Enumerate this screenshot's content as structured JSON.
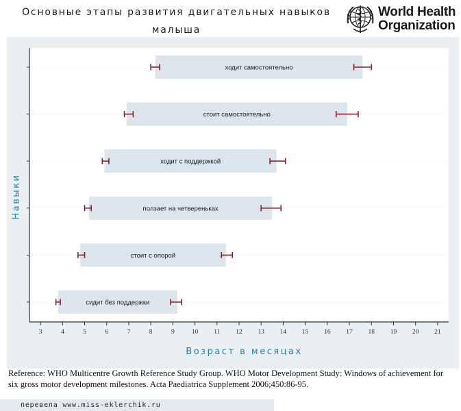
{
  "header": {
    "title_line1": "Основные этапы развития двигательных навыков",
    "title_line2": "малыша"
  },
  "logo": {
    "line1": "World Health",
    "line2": "Organization",
    "icon": "who-emblem-icon"
  },
  "chart_data": {
    "type": "range-bar",
    "ylabel": "Навыки",
    "xlabel": "Возраст в месяцах",
    "xlim": [
      2.5,
      21.5
    ],
    "xticks": [
      3,
      4,
      5,
      6,
      7,
      8,
      9,
      10,
      11,
      12,
      13,
      14,
      15,
      16,
      17,
      18,
      19,
      20,
      21
    ],
    "grid": false,
    "milestones": [
      {
        "label": "ходит самостоятельно",
        "start": 8.2,
        "end": 17.6,
        "ci_start": [
          8.0,
          8.4
        ],
        "ci_end": [
          17.2,
          18.0
        ]
      },
      {
        "label": "стоит самостоятельно",
        "start": 6.9,
        "end": 16.9,
        "ci_start": [
          6.8,
          7.2
        ],
        "ci_end": [
          16.4,
          17.4
        ]
      },
      {
        "label": "ходит с поддержкой",
        "start": 5.9,
        "end": 13.7,
        "ci_start": [
          5.8,
          6.1
        ],
        "ci_end": [
          13.4,
          14.1
        ]
      },
      {
        "label": "ползает на четвереньках",
        "start": 5.2,
        "end": 13.5,
        "ci_start": [
          5.0,
          5.3
        ],
        "ci_end": [
          13.0,
          13.9
        ]
      },
      {
        "label": "стоит с опорой",
        "start": 4.8,
        "end": 11.4,
        "ci_start": [
          4.7,
          5.0
        ],
        "ci_end": [
          11.2,
          11.7
        ]
      },
      {
        "label": "сидит без поддержки",
        "start": 3.8,
        "end": 9.2,
        "ci_start": [
          3.7,
          3.9
        ],
        "ci_end": [
          8.9,
          9.4
        ]
      }
    ],
    "colors": {
      "bar": "#dde5ec",
      "error_bar": "#8b1e2d",
      "axis": "#333333",
      "label_blue": "#2b7fa8"
    }
  },
  "reference": "Reference: WHO Multicentre Growth Reference Study Group. WHO Motor Development Study: Windows of achievement for six gross motor development milestones. Acta Paediatrica Supplement 2006;450:86-95.",
  "footer": "перевела www.miss-eklerchik.ru"
}
